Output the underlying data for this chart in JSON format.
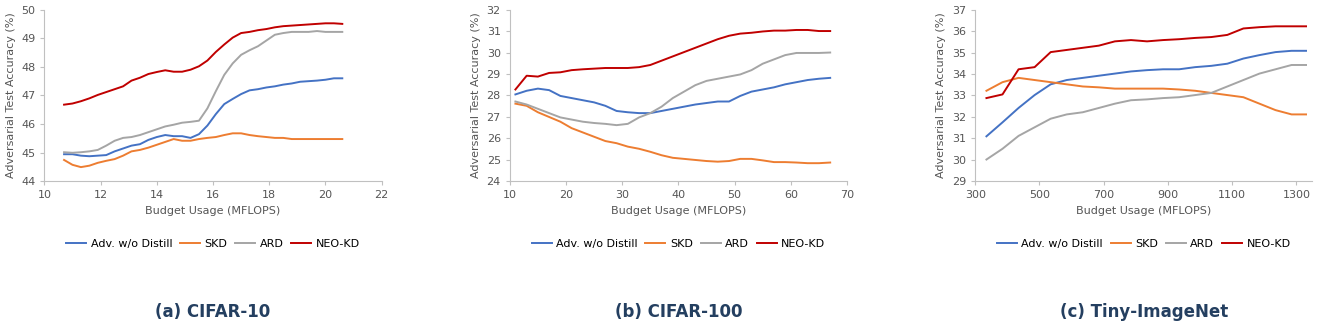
{
  "cifar10": {
    "title": "(a) CIFAR-10",
    "xlabel": "Budget Usage (MFLOPS)",
    "ylabel": "Adversarial Test Accuracy (%)",
    "xlim": [
      10,
      22
    ],
    "ylim": [
      44,
      50
    ],
    "xticks": [
      10,
      12,
      14,
      16,
      18,
      20,
      22
    ],
    "yticks": [
      44,
      45,
      46,
      47,
      48,
      49,
      50
    ],
    "adv_x": [
      10.7,
      11.0,
      11.3,
      11.6,
      11.9,
      12.2,
      12.5,
      12.8,
      13.1,
      13.4,
      13.7,
      14.0,
      14.3,
      14.6,
      14.9,
      15.2,
      15.5,
      15.8,
      16.1,
      16.4,
      16.7,
      17.0,
      17.3,
      17.6,
      17.9,
      18.2,
      18.5,
      18.8,
      19.1,
      19.4,
      19.7,
      20.0,
      20.3,
      20.6
    ],
    "adv_y": [
      44.95,
      44.95,
      44.9,
      44.88,
      44.9,
      44.92,
      45.05,
      45.15,
      45.25,
      45.3,
      45.45,
      45.55,
      45.62,
      45.58,
      45.58,
      45.52,
      45.65,
      45.95,
      46.35,
      46.7,
      46.88,
      47.05,
      47.18,
      47.22,
      47.28,
      47.32,
      47.38,
      47.42,
      47.48,
      47.5,
      47.52,
      47.55,
      47.6,
      47.6
    ],
    "skd_x": [
      10.7,
      11.0,
      11.3,
      11.6,
      11.9,
      12.2,
      12.5,
      12.8,
      13.1,
      13.4,
      13.7,
      14.0,
      14.3,
      14.6,
      14.9,
      15.2,
      15.5,
      15.8,
      16.1,
      16.4,
      16.7,
      17.0,
      17.3,
      17.6,
      17.9,
      18.2,
      18.5,
      18.8,
      19.1,
      19.4,
      19.7,
      20.0,
      20.3,
      20.6
    ],
    "skd_y": [
      44.75,
      44.58,
      44.5,
      44.55,
      44.65,
      44.72,
      44.78,
      44.9,
      45.05,
      45.1,
      45.18,
      45.28,
      45.38,
      45.48,
      45.42,
      45.42,
      45.48,
      45.52,
      45.55,
      45.62,
      45.68,
      45.68,
      45.62,
      45.58,
      45.55,
      45.52,
      45.52,
      45.48,
      45.48,
      45.48,
      45.48,
      45.48,
      45.48,
      45.48
    ],
    "ard_x": [
      10.7,
      11.0,
      11.3,
      11.6,
      11.9,
      12.2,
      12.5,
      12.8,
      13.1,
      13.4,
      13.7,
      14.0,
      14.3,
      14.6,
      14.9,
      15.2,
      15.5,
      15.8,
      16.1,
      16.4,
      16.7,
      17.0,
      17.3,
      17.6,
      17.9,
      18.2,
      18.5,
      18.8,
      19.1,
      19.4,
      19.7,
      20.0,
      20.3,
      20.6
    ],
    "ard_y": [
      45.02,
      45.0,
      45.02,
      45.05,
      45.1,
      45.25,
      45.42,
      45.52,
      45.55,
      45.62,
      45.72,
      45.82,
      45.92,
      45.98,
      46.05,
      46.08,
      46.12,
      46.55,
      47.15,
      47.72,
      48.12,
      48.42,
      48.58,
      48.72,
      48.92,
      49.12,
      49.18,
      49.22,
      49.22,
      49.22,
      49.25,
      49.22,
      49.22,
      49.22
    ],
    "neo_x": [
      10.7,
      11.0,
      11.3,
      11.6,
      11.9,
      12.2,
      12.5,
      12.8,
      13.1,
      13.4,
      13.7,
      14.0,
      14.3,
      14.6,
      14.9,
      15.2,
      15.5,
      15.8,
      16.1,
      16.4,
      16.7,
      17.0,
      17.3,
      17.6,
      17.9,
      18.2,
      18.5,
      18.8,
      19.1,
      19.4,
      19.7,
      20.0,
      20.3,
      20.6
    ],
    "neo_y": [
      46.68,
      46.72,
      46.8,
      46.9,
      47.02,
      47.12,
      47.22,
      47.32,
      47.52,
      47.62,
      47.75,
      47.82,
      47.88,
      47.83,
      47.83,
      47.9,
      48.02,
      48.22,
      48.52,
      48.78,
      49.02,
      49.18,
      49.22,
      49.28,
      49.32,
      49.38,
      49.42,
      49.44,
      49.46,
      49.48,
      49.5,
      49.52,
      49.52,
      49.5
    ]
  },
  "cifar100": {
    "title": "(b) CIFAR-100",
    "xlabel": "Budget Usage (MFLOPS)",
    "ylabel": "Adversarial Test Accuracy (%)",
    "xlim": [
      10,
      70
    ],
    "ylim": [
      24,
      32
    ],
    "xticks": [
      10,
      20,
      30,
      40,
      50,
      60,
      70
    ],
    "yticks": [
      24,
      25,
      26,
      27,
      28,
      29,
      30,
      31,
      32
    ],
    "adv_x": [
      11,
      13,
      15,
      17,
      19,
      21,
      23,
      25,
      27,
      29,
      31,
      33,
      35,
      37,
      39,
      41,
      43,
      45,
      47,
      49,
      51,
      53,
      55,
      57,
      59,
      61,
      63,
      65,
      67
    ],
    "adv_y": [
      28.05,
      28.22,
      28.32,
      28.25,
      27.98,
      27.88,
      27.78,
      27.68,
      27.52,
      27.28,
      27.22,
      27.18,
      27.18,
      27.28,
      27.38,
      27.48,
      27.58,
      27.65,
      27.72,
      27.72,
      27.98,
      28.18,
      28.28,
      28.38,
      28.52,
      28.62,
      28.72,
      28.78,
      28.82
    ],
    "skd_x": [
      11,
      13,
      15,
      17,
      19,
      21,
      23,
      25,
      27,
      29,
      31,
      33,
      35,
      37,
      39,
      41,
      43,
      45,
      47,
      49,
      51,
      53,
      55,
      57,
      59,
      61,
      63,
      65,
      67
    ],
    "skd_y": [
      27.62,
      27.52,
      27.22,
      27.0,
      26.78,
      26.48,
      26.28,
      26.08,
      25.88,
      25.78,
      25.62,
      25.52,
      25.38,
      25.22,
      25.1,
      25.05,
      25.0,
      24.95,
      24.92,
      24.95,
      25.05,
      25.05,
      24.98,
      24.9,
      24.9,
      24.88,
      24.85,
      24.85,
      24.88
    ],
    "ard_x": [
      11,
      13,
      15,
      17,
      19,
      21,
      23,
      25,
      27,
      29,
      31,
      33,
      35,
      37,
      39,
      41,
      43,
      45,
      47,
      49,
      51,
      53,
      55,
      57,
      59,
      61,
      63,
      65,
      67
    ],
    "ard_y": [
      27.72,
      27.58,
      27.38,
      27.18,
      26.98,
      26.88,
      26.78,
      26.72,
      26.68,
      26.62,
      26.68,
      26.98,
      27.18,
      27.48,
      27.88,
      28.18,
      28.48,
      28.68,
      28.78,
      28.88,
      28.98,
      29.18,
      29.48,
      29.68,
      29.88,
      29.98,
      29.98,
      29.98,
      30.0
    ],
    "neo_x": [
      11,
      13,
      15,
      17,
      19,
      21,
      23,
      25,
      27,
      29,
      31,
      33,
      35,
      37,
      39,
      41,
      43,
      45,
      47,
      49,
      51,
      53,
      55,
      57,
      59,
      61,
      63,
      65,
      67
    ],
    "neo_y": [
      28.28,
      28.92,
      28.88,
      29.05,
      29.08,
      29.18,
      29.22,
      29.25,
      29.28,
      29.28,
      29.28,
      29.32,
      29.42,
      29.62,
      29.82,
      30.02,
      30.22,
      30.42,
      30.62,
      30.78,
      30.88,
      30.92,
      30.98,
      31.02,
      31.02,
      31.05,
      31.05,
      31.0,
      31.0
    ]
  },
  "tiny": {
    "title": "(c) Tiny-ImageNet",
    "xlabel": "Budget Usage (MFLOPS)",
    "ylabel": "Adversarial Test Accuracy (%)",
    "xlim": [
      300,
      1350
    ],
    "ylim": [
      29,
      37
    ],
    "xticks": [
      300,
      500,
      700,
      900,
      1100,
      1300
    ],
    "yticks": [
      29,
      30,
      31,
      32,
      33,
      34,
      35,
      36,
      37
    ],
    "adv_x": [
      335,
      385,
      435,
      485,
      535,
      585,
      635,
      685,
      735,
      785,
      835,
      885,
      935,
      985,
      1035,
      1085,
      1135,
      1185,
      1235,
      1285,
      1330
    ],
    "adv_y": [
      31.1,
      31.75,
      32.42,
      33.02,
      33.52,
      33.72,
      33.82,
      33.92,
      34.02,
      34.12,
      34.18,
      34.22,
      34.22,
      34.32,
      34.38,
      34.48,
      34.72,
      34.88,
      35.02,
      35.08,
      35.08
    ],
    "skd_x": [
      335,
      385,
      435,
      485,
      535,
      585,
      635,
      685,
      735,
      785,
      835,
      885,
      935,
      985,
      1035,
      1085,
      1135,
      1185,
      1235,
      1285,
      1330
    ],
    "skd_y": [
      33.22,
      33.62,
      33.82,
      33.72,
      33.62,
      33.52,
      33.42,
      33.38,
      33.32,
      33.32,
      33.32,
      33.32,
      33.28,
      33.22,
      33.12,
      33.02,
      32.92,
      32.62,
      32.32,
      32.12,
      32.12
    ],
    "ard_x": [
      335,
      385,
      435,
      485,
      535,
      585,
      635,
      685,
      735,
      785,
      835,
      885,
      935,
      985,
      1035,
      1085,
      1135,
      1185,
      1235,
      1285,
      1330
    ],
    "ard_y": [
      30.02,
      30.52,
      31.12,
      31.52,
      31.92,
      32.12,
      32.22,
      32.42,
      32.62,
      32.78,
      32.82,
      32.88,
      32.92,
      33.02,
      33.12,
      33.42,
      33.72,
      34.02,
      34.22,
      34.42,
      34.42
    ],
    "neo_x": [
      335,
      385,
      435,
      485,
      535,
      585,
      635,
      685,
      735,
      785,
      835,
      885,
      935,
      985,
      1035,
      1085,
      1135,
      1185,
      1235,
      1285,
      1330
    ],
    "neo_y": [
      32.88,
      33.05,
      34.22,
      34.32,
      35.02,
      35.12,
      35.22,
      35.32,
      35.52,
      35.58,
      35.52,
      35.58,
      35.62,
      35.68,
      35.72,
      35.82,
      36.12,
      36.18,
      36.22,
      36.22,
      36.22
    ]
  },
  "colors": {
    "adv": "#4472c4",
    "skd": "#ed7d31",
    "ard": "#a5a5a5",
    "neo": "#c00000"
  },
  "legend_labels": [
    "Adv. w/o Distill",
    "SKD",
    "ARD",
    "NEO-KD"
  ],
  "title_color": "#243f60",
  "title_fontsize": 12,
  "axis_label_fontsize": 8,
  "tick_fontsize": 8,
  "legend_fontsize": 8,
  "line_width": 1.4
}
